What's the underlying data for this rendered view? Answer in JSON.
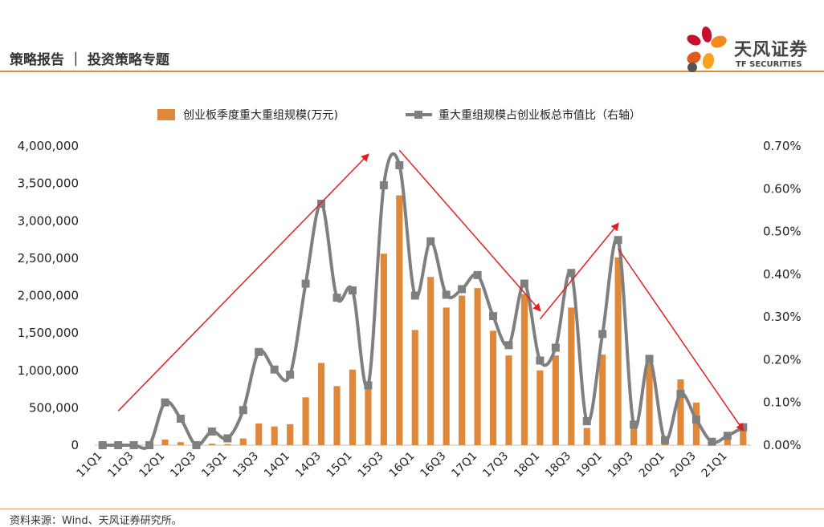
{
  "header": {
    "title": "策略报告 ｜ 投资策略专题"
  },
  "logo": {
    "cn": "天风证券",
    "en": "TF SECURITIES"
  },
  "footer": {
    "source": "资料来源：Wind、天风证券研究所。"
  },
  "colors": {
    "bar": "#e0883a",
    "line": "#7f7f7f",
    "arrow": "#e02020",
    "rule": "#e0883a"
  },
  "chart_data": {
    "type": "bar",
    "title": "",
    "legend": {
      "placement": "top",
      "bar_label": "创业板季度重大重组规模(万元)",
      "line_label": "重大重组规模占创业板总市值比（右轴）"
    },
    "categories": [
      "11Q1",
      "11Q2",
      "11Q3",
      "11Q4",
      "12Q1",
      "12Q2",
      "12Q3",
      "12Q4",
      "13Q1",
      "13Q2",
      "13Q3",
      "13Q4",
      "14Q1",
      "14Q2",
      "14Q3",
      "14Q4",
      "15Q1",
      "15Q2",
      "15Q3",
      "15Q4",
      "16Q1",
      "16Q2",
      "16Q3",
      "16Q4",
      "17Q1",
      "17Q2",
      "17Q3",
      "17Q4",
      "18Q1",
      "18Q2",
      "18Q3",
      "18Q4",
      "19Q1",
      "19Q2",
      "19Q3",
      "19Q4",
      "20Q1",
      "20Q2",
      "20Q3",
      "20Q4",
      "21Q1",
      "21Q2"
    ],
    "x_tick_labels": [
      "11Q1",
      "11Q3",
      "12Q1",
      "12Q3",
      "13Q1",
      "13Q3",
      "14Q1",
      "14Q3",
      "15Q1",
      "15Q3",
      "16Q1",
      "16Q3",
      "17Q1",
      "17Q3",
      "18Q1",
      "18Q3",
      "19Q1",
      "19Q3",
      "20Q1",
      "20Q3",
      "21Q1"
    ],
    "series": [
      {
        "name": "创业板季度重大重组规模(万元)",
        "axis": "left",
        "kind": "bar",
        "values": [
          0,
          0,
          0,
          5000,
          75000,
          40000,
          5000,
          20000,
          15000,
          90000,
          290000,
          250000,
          280000,
          640000,
          1100000,
          790000,
          1010000,
          780000,
          2560000,
          3340000,
          1540000,
          2250000,
          1840000,
          2000000,
          2100000,
          1530000,
          1200000,
          2020000,
          1000000,
          1200000,
          1840000,
          230000,
          1210000,
          2510000,
          280000,
          1100000,
          50000,
          880000,
          570000,
          50000,
          110000,
          250000
        ]
      },
      {
        "name": "重大重组规模占创业板总市值比（右轴）",
        "axis": "right",
        "kind": "line",
        "values": [
          0.0,
          0.0,
          0.0,
          0.0,
          0.1,
          0.062,
          0.0,
          0.032,
          0.016,
          0.082,
          0.218,
          0.177,
          0.165,
          0.378,
          0.565,
          0.345,
          0.362,
          0.14,
          0.608,
          0.655,
          0.35,
          0.477,
          0.352,
          0.365,
          0.398,
          0.302,
          0.234,
          0.378,
          0.198,
          0.228,
          0.403,
          0.056,
          0.26,
          0.48,
          0.048,
          0.202,
          0.012,
          0.12,
          0.06,
          0.008,
          0.022,
          0.042
        ]
      }
    ],
    "left_axis": {
      "min": 0,
      "max": 4000000,
      "ticks": [
        "0",
        "500,000",
        "1,000,000",
        "1,500,000",
        "2,000,000",
        "2,500,000",
        "3,000,000",
        "3,500,000",
        "4,000,000"
      ]
    },
    "right_axis": {
      "min": 0,
      "max": 0.7,
      "ticks": [
        "0.00%",
        "0.10%",
        "0.20%",
        "0.30%",
        "0.40%",
        "0.50%",
        "0.60%",
        "0.70%"
      ]
    },
    "grid": false,
    "annotations": {
      "arrows": [
        {
          "from": [
            "11Q2",
            0.08
          ],
          "to": [
            "15Q2",
            0.68
          ]
        },
        {
          "from": [
            "15Q4",
            0.69
          ],
          "to": [
            "18Q1",
            0.315
          ]
        },
        {
          "from": [
            "18Q1",
            0.295
          ],
          "to": [
            "19Q2",
            0.518
          ]
        },
        {
          "from": [
            "19Q2",
            0.46
          ],
          "to": [
            "21Q2",
            0.035
          ]
        }
      ]
    }
  }
}
